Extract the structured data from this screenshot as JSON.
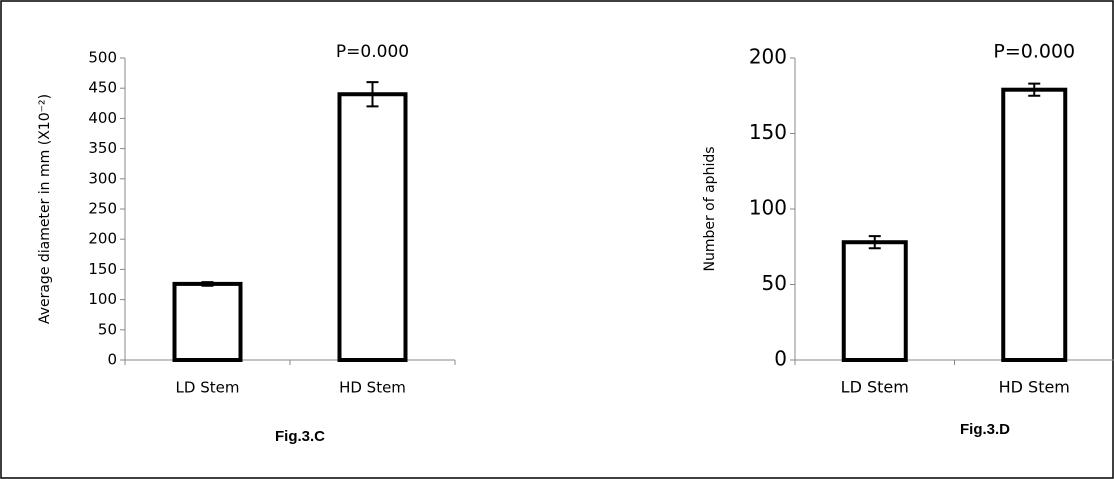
{
  "chart_data": [
    {
      "type": "bar",
      "y_label": "Average diameter in mm (X10⁻²)",
      "annotation": "P=0.000",
      "caption": "Fig.3.C",
      "categories": [
        "LD Stem",
        "HD Stem"
      ],
      "values": [
        126,
        440
      ],
      "errors": [
        3,
        20
      ],
      "color": "#ffffff",
      "ylim": [
        0,
        500
      ],
      "yticks": [
        0,
        50,
        100,
        150,
        200,
        250,
        300,
        350,
        400,
        450,
        500
      ]
    },
    {
      "type": "bar",
      "y_label": "Number of aphids",
      "annotation": "P=0.000",
      "caption": "Fig.3.D",
      "categories": [
        "LD Stem",
        "HD Stem"
      ],
      "values": [
        78,
        179
      ],
      "errors": [
        4,
        4
      ],
      "color": "#ffffff",
      "ylim": [
        0,
        200
      ],
      "yticks": [
        0,
        50,
        100,
        150,
        200
      ]
    }
  ]
}
